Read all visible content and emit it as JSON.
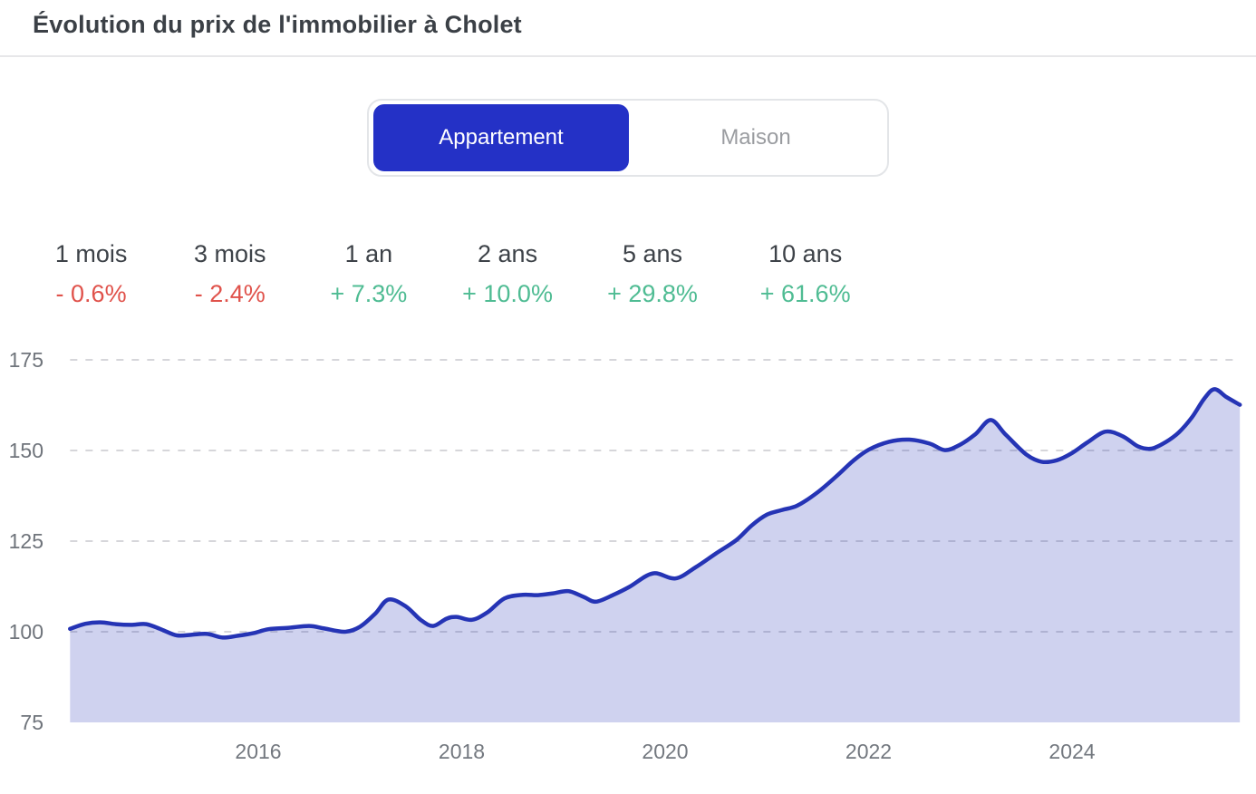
{
  "header": {
    "title": "Évolution du prix de l'immobilier à Cholet"
  },
  "toggle": {
    "options": [
      {
        "label": "Appartement",
        "active": true
      },
      {
        "label": "Maison",
        "active": false
      }
    ]
  },
  "stats": [
    {
      "label": "1 mois",
      "value": "- 0.6%",
      "trend": "down"
    },
    {
      "label": "3 mois",
      "value": "- 2.4%",
      "trend": "down"
    },
    {
      "label": "1 an",
      "value": "+ 7.3%",
      "trend": "up"
    },
    {
      "label": "2 ans",
      "value": "+ 10.0%",
      "trend": "up"
    },
    {
      "label": "5 ans",
      "value": "+ 29.8%",
      "trend": "up"
    },
    {
      "label": "10 ans",
      "value": "+ 61.6%",
      "trend": "up"
    }
  ],
  "colors": {
    "accent": "#2431c6",
    "line": "#2534b5",
    "fill_opacity": 0.22,
    "negative": "#e0524b",
    "positive": "#4fbc93",
    "gridline": "#d6d6da",
    "axis_label": "#6f747b"
  },
  "chart_data": {
    "type": "area",
    "title": "Évolution du prix de l'immobilier à Cholet — Appartement",
    "series_name": "Appartement",
    "xlabel": "",
    "ylabel": "",
    "ylim": [
      75,
      175
    ],
    "x_range": [
      2014.15,
      2025.65
    ],
    "yticks": [
      75,
      100,
      125,
      150,
      175
    ],
    "gridline_yticks": [
      100,
      125,
      150,
      175
    ],
    "xticks": [
      2016,
      2018,
      2020,
      2022,
      2024
    ],
    "grid": "dashed-horizontal",
    "legend": "none",
    "x": [
      2014.15,
      2014.3,
      2014.45,
      2014.6,
      2014.75,
      2014.9,
      2015.05,
      2015.2,
      2015.35,
      2015.5,
      2015.65,
      2015.8,
      2015.95,
      2016.1,
      2016.3,
      2016.5,
      2016.65,
      2016.85,
      2017.0,
      2017.15,
      2017.28,
      2017.45,
      2017.6,
      2017.72,
      2017.85,
      2017.95,
      2018.1,
      2018.25,
      2018.42,
      2018.6,
      2018.75,
      2018.9,
      2019.05,
      2019.2,
      2019.32,
      2019.5,
      2019.65,
      2019.88,
      2020.1,
      2020.3,
      2020.5,
      2020.7,
      2020.85,
      2021.0,
      2021.15,
      2021.3,
      2021.5,
      2021.7,
      2021.85,
      2022.0,
      2022.2,
      2022.4,
      2022.6,
      2022.75,
      2022.9,
      2023.05,
      2023.2,
      2023.35,
      2023.55,
      2023.7,
      2023.85,
      2024.0,
      2024.15,
      2024.33,
      2024.5,
      2024.65,
      2024.78,
      2024.92,
      2025.05,
      2025.18,
      2025.3,
      2025.4,
      2025.52,
      2025.65
    ],
    "values": [
      100.8,
      102.2,
      102.6,
      102.1,
      101.9,
      102.1,
      100.6,
      99.0,
      99.2,
      99.4,
      98.4,
      98.9,
      99.6,
      100.7,
      101.1,
      101.6,
      100.9,
      100.0,
      101.4,
      105.0,
      108.9,
      107.0,
      103.2,
      101.6,
      103.6,
      104.1,
      103.3,
      105.3,
      109.2,
      110.2,
      110.1,
      110.6,
      111.2,
      109.6,
      108.3,
      110.3,
      112.4,
      116.1,
      114.7,
      117.8,
      121.6,
      125.3,
      129.3,
      132.3,
      133.6,
      134.8,
      138.5,
      143.3,
      147.2,
      150.2,
      152.4,
      153.0,
      151.9,
      150.1,
      151.6,
      154.5,
      158.4,
      154.3,
      148.9,
      146.9,
      147.3,
      149.3,
      152.2,
      155.2,
      153.9,
      151.1,
      150.5,
      152.3,
      155.0,
      159.2,
      164.3,
      166.9,
      164.7,
      162.6
    ]
  }
}
